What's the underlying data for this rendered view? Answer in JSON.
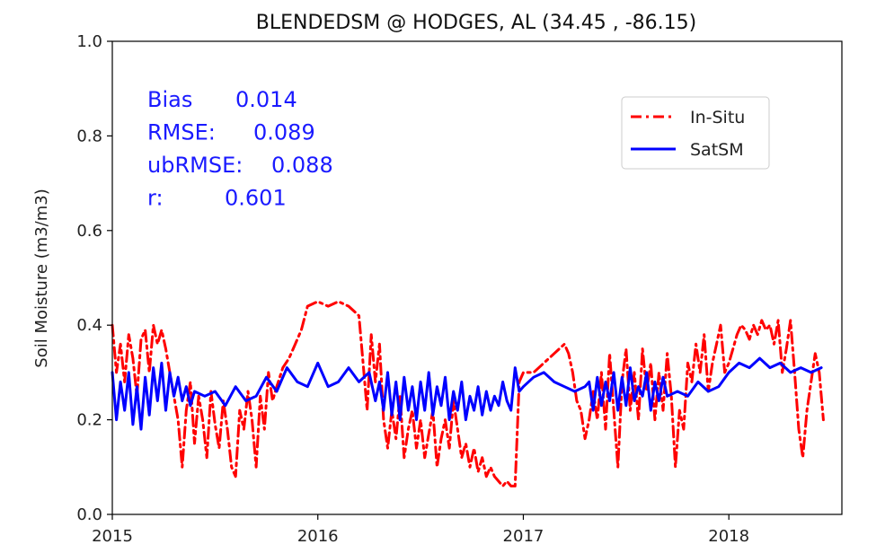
{
  "chart_data": {
    "type": "line",
    "title": "BLENDEDSM  @ HODGES, AL (34.45 , -86.15)",
    "xlabel": "",
    "ylabel": "Soil Moisture (m3/m3)",
    "xlim": [
      2015.0,
      2018.55
    ],
    "ylim": [
      0.0,
      1.0
    ],
    "xticks": [
      {
        "value": 2015,
        "label": "2015"
      },
      {
        "value": 2016,
        "label": "2016"
      },
      {
        "value": 2017,
        "label": "2017"
      },
      {
        "value": 2018,
        "label": "2018"
      }
    ],
    "yticks": [
      {
        "value": 0.0,
        "label": "0.0"
      },
      {
        "value": 0.2,
        "label": "0.2"
      },
      {
        "value": 0.4,
        "label": "0.4"
      },
      {
        "value": 0.6,
        "label": "0.6"
      },
      {
        "value": 0.8,
        "label": "0.8"
      },
      {
        "value": 1.0,
        "label": "1.0"
      }
    ],
    "legend_position": "upper-right",
    "grid": false,
    "stats": [
      {
        "label": "Bias",
        "value": "0.014"
      },
      {
        "label": "RMSE:",
        "value": "0.089"
      },
      {
        "label": "ubRMSE:",
        "value": "0.088"
      },
      {
        "label": "r:",
        "value": "0.601"
      }
    ],
    "stats_color": "#1a1aff",
    "series": [
      {
        "name": "In-Situ",
        "color": "#ff0000",
        "style": "dash-dot",
        "x": [
          2015.0,
          2015.02,
          2015.04,
          2015.06,
          2015.08,
          2015.1,
          2015.12,
          2015.14,
          2015.16,
          2015.18,
          2015.2,
          2015.22,
          2015.24,
          2015.26,
          2015.28,
          2015.3,
          2015.32,
          2015.34,
          2015.36,
          2015.38,
          2015.4,
          2015.42,
          2015.44,
          2015.46,
          2015.48,
          2015.5,
          2015.52,
          2015.54,
          2015.56,
          2015.58,
          2015.6,
          2015.62,
          2015.64,
          2015.66,
          2015.68,
          2015.7,
          2015.72,
          2015.74,
          2015.76,
          2015.78,
          2015.8,
          2015.83,
          2015.86,
          2015.89,
          2015.92,
          2015.95,
          2016.0,
          2016.05,
          2016.1,
          2016.15,
          2016.2,
          2016.22,
          2016.24,
          2016.26,
          2016.28,
          2016.3,
          2016.32,
          2016.34,
          2016.36,
          2016.38,
          2016.4,
          2016.42,
          2016.44,
          2016.46,
          2016.48,
          2016.5,
          2016.52,
          2016.54,
          2016.56,
          2016.58,
          2016.6,
          2016.62,
          2016.64,
          2016.66,
          2016.68,
          2016.7,
          2016.72,
          2016.74,
          2016.76,
          2016.78,
          2016.8,
          2016.82,
          2016.84,
          2016.86,
          2016.88,
          2016.9,
          2016.92,
          2016.94,
          2016.96,
          2016.98,
          2017.0,
          2017.05,
          2017.1,
          2017.15,
          2017.2,
          2017.22,
          2017.24,
          2017.26,
          2017.28,
          2017.3,
          2017.32,
          2017.34,
          2017.36,
          2017.38,
          2017.4,
          2017.42,
          2017.44,
          2017.46,
          2017.48,
          2017.5,
          2017.52,
          2017.54,
          2017.56,
          2017.58,
          2017.6,
          2017.62,
          2017.64,
          2017.66,
          2017.68,
          2017.7,
          2017.72,
          2017.74,
          2017.76,
          2017.78,
          2017.8,
          2017.82,
          2017.84,
          2017.86,
          2017.88,
          2017.9,
          2017.92,
          2017.94,
          2017.96,
          2017.98,
          2018.0,
          2018.02,
          2018.04,
          2018.06,
          2018.08,
          2018.1,
          2018.12,
          2018.14,
          2018.16,
          2018.18,
          2018.2,
          2018.22,
          2018.24,
          2018.26,
          2018.28,
          2018.3,
          2018.32,
          2018.34,
          2018.36,
          2018.38,
          2018.4,
          2018.42,
          2018.44,
          2018.46
        ],
        "y": [
          0.4,
          0.3,
          0.36,
          0.28,
          0.38,
          0.33,
          0.25,
          0.37,
          0.39,
          0.3,
          0.4,
          0.36,
          0.39,
          0.35,
          0.3,
          0.25,
          0.2,
          0.1,
          0.22,
          0.28,
          0.15,
          0.25,
          0.2,
          0.12,
          0.26,
          0.19,
          0.14,
          0.24,
          0.18,
          0.1,
          0.08,
          0.22,
          0.18,
          0.26,
          0.2,
          0.1,
          0.25,
          0.18,
          0.3,
          0.24,
          0.27,
          0.31,
          0.33,
          0.36,
          0.39,
          0.44,
          0.45,
          0.44,
          0.45,
          0.44,
          0.42,
          0.32,
          0.22,
          0.38,
          0.28,
          0.36,
          0.2,
          0.14,
          0.22,
          0.16,
          0.25,
          0.12,
          0.18,
          0.22,
          0.14,
          0.2,
          0.12,
          0.17,
          0.22,
          0.1,
          0.16,
          0.2,
          0.14,
          0.24,
          0.18,
          0.12,
          0.15,
          0.1,
          0.14,
          0.09,
          0.12,
          0.08,
          0.1,
          0.08,
          0.07,
          0.06,
          0.07,
          0.06,
          0.06,
          0.28,
          0.3,
          0.3,
          0.32,
          0.34,
          0.36,
          0.34,
          0.3,
          0.24,
          0.22,
          0.16,
          0.2,
          0.26,
          0.2,
          0.3,
          0.18,
          0.34,
          0.22,
          0.1,
          0.28,
          0.35,
          0.22,
          0.3,
          0.2,
          0.35,
          0.26,
          0.32,
          0.2,
          0.3,
          0.22,
          0.34,
          0.25,
          0.1,
          0.22,
          0.18,
          0.32,
          0.28,
          0.36,
          0.3,
          0.38,
          0.26,
          0.32,
          0.36,
          0.4,
          0.3,
          0.32,
          0.35,
          0.38,
          0.4,
          0.39,
          0.37,
          0.4,
          0.38,
          0.41,
          0.39,
          0.4,
          0.36,
          0.41,
          0.3,
          0.35,
          0.41,
          0.3,
          0.18,
          0.12,
          0.22,
          0.28,
          0.34,
          0.3,
          0.2
        ]
      },
      {
        "name": "SatSM",
        "color": "#0000ff",
        "style": "solid",
        "x": [
          2015.0,
          2015.02,
          2015.04,
          2015.06,
          2015.08,
          2015.1,
          2015.12,
          2015.14,
          2015.16,
          2015.18,
          2015.2,
          2015.22,
          2015.24,
          2015.26,
          2015.28,
          2015.3,
          2015.32,
          2015.34,
          2015.36,
          2015.38,
          2015.4,
          2015.45,
          2015.5,
          2015.55,
          2015.6,
          2015.65,
          2015.7,
          2015.75,
          2015.8,
          2015.85,
          2015.9,
          2015.95,
          2016.0,
          2016.05,
          2016.1,
          2016.15,
          2016.2,
          2016.25,
          2016.28,
          2016.3,
          2016.32,
          2016.34,
          2016.36,
          2016.38,
          2016.4,
          2016.42,
          2016.44,
          2016.46,
          2016.48,
          2016.5,
          2016.52,
          2016.54,
          2016.56,
          2016.58,
          2016.6,
          2016.62,
          2016.64,
          2016.66,
          2016.68,
          2016.7,
          2016.72,
          2016.74,
          2016.76,
          2016.78,
          2016.8,
          2016.82,
          2016.84,
          2016.86,
          2016.88,
          2016.9,
          2016.92,
          2016.94,
          2016.96,
          2016.98,
          2017.0,
          2017.05,
          2017.1,
          2017.15,
          2017.2,
          2017.25,
          2017.3,
          2017.32,
          2017.34,
          2017.36,
          2017.38,
          2017.4,
          2017.42,
          2017.44,
          2017.46,
          2017.48,
          2017.5,
          2017.52,
          2017.54,
          2017.56,
          2017.58,
          2017.6,
          2017.62,
          2017.64,
          2017.66,
          2017.68,
          2017.7,
          2017.75,
          2017.8,
          2017.85,
          2017.9,
          2017.95,
          2018.0,
          2018.05,
          2018.1,
          2018.15,
          2018.2,
          2018.25,
          2018.3,
          2018.35,
          2018.4,
          2018.45
        ],
        "y": [
          0.3,
          0.2,
          0.28,
          0.22,
          0.3,
          0.19,
          0.27,
          0.18,
          0.29,
          0.21,
          0.31,
          0.24,
          0.32,
          0.22,
          0.3,
          0.25,
          0.29,
          0.24,
          0.27,
          0.23,
          0.26,
          0.25,
          0.26,
          0.23,
          0.27,
          0.24,
          0.25,
          0.29,
          0.26,
          0.31,
          0.28,
          0.27,
          0.32,
          0.27,
          0.28,
          0.31,
          0.28,
          0.3,
          0.24,
          0.28,
          0.22,
          0.3,
          0.21,
          0.28,
          0.2,
          0.29,
          0.22,
          0.27,
          0.2,
          0.28,
          0.22,
          0.3,
          0.21,
          0.27,
          0.23,
          0.29,
          0.2,
          0.26,
          0.22,
          0.28,
          0.2,
          0.25,
          0.22,
          0.27,
          0.21,
          0.26,
          0.22,
          0.25,
          0.23,
          0.28,
          0.24,
          0.22,
          0.31,
          0.26,
          0.27,
          0.29,
          0.3,
          0.28,
          0.27,
          0.26,
          0.27,
          0.28,
          0.22,
          0.29,
          0.23,
          0.28,
          0.24,
          0.3,
          0.22,
          0.29,
          0.23,
          0.31,
          0.24,
          0.27,
          0.25,
          0.3,
          0.22,
          0.28,
          0.24,
          0.29,
          0.25,
          0.26,
          0.25,
          0.28,
          0.26,
          0.27,
          0.3,
          0.32,
          0.31,
          0.33,
          0.31,
          0.32,
          0.3,
          0.31,
          0.3,
          0.31
        ]
      }
    ]
  }
}
